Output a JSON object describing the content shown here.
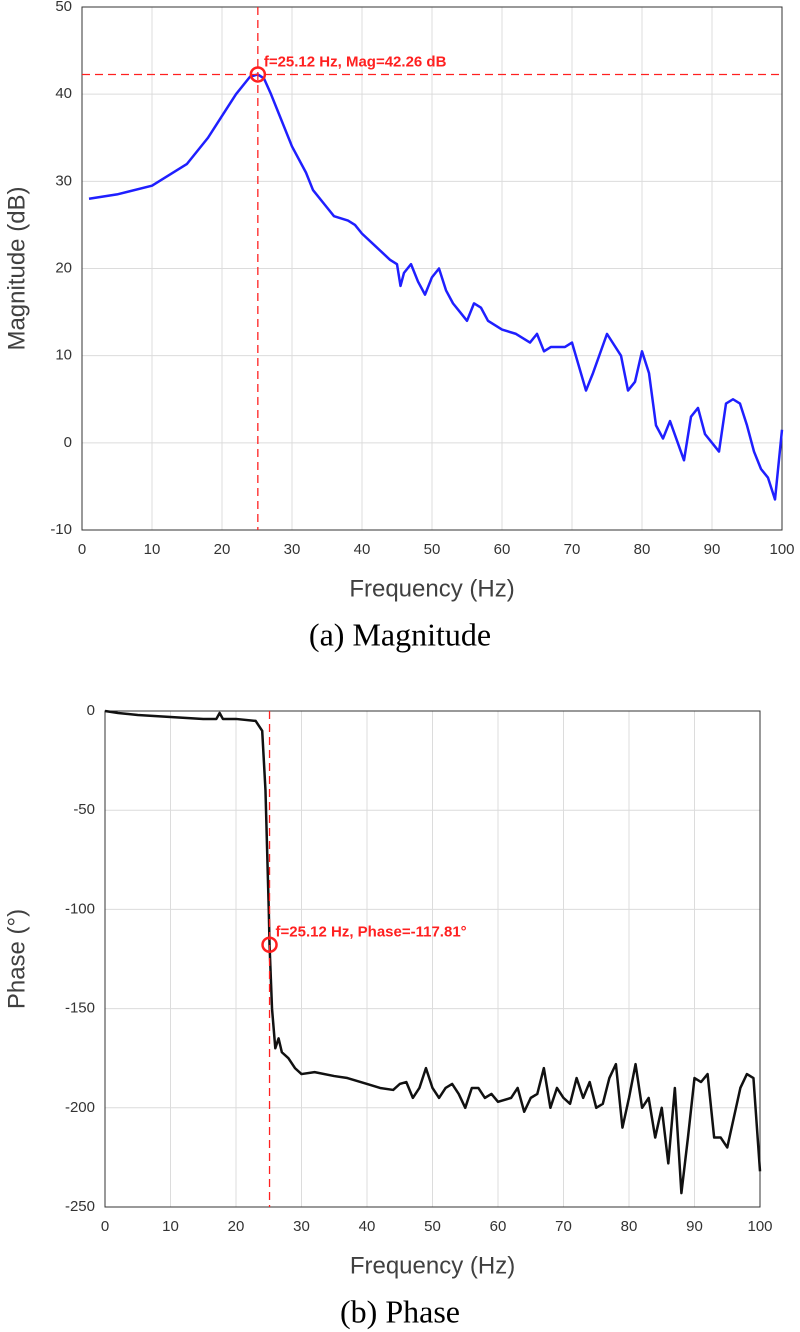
{
  "chart_data": [
    {
      "type": "line",
      "caption": "(a)  Magnitude",
      "x_label": "Frequency (Hz)",
      "y_label": "Magnitude (dB)",
      "x": [
        1,
        5,
        10,
        15,
        18,
        20,
        22,
        24,
        25.12,
        26,
        27,
        28,
        30,
        32,
        33,
        35,
        36,
        38,
        39,
        40,
        42,
        44,
        45,
        45.5,
        46,
        47,
        48,
        49,
        50,
        51,
        52,
        53,
        54,
        55,
        56,
        57,
        58,
        60,
        62,
        64,
        65,
        66,
        67,
        68,
        69,
        70,
        72,
        73,
        75,
        77,
        78,
        79,
        80,
        81,
        82,
        83,
        84,
        86,
        87,
        88,
        89,
        90,
        91,
        92,
        93,
        94,
        95,
        96,
        97,
        98,
        99,
        100
      ],
      "values": [
        28,
        28.5,
        29.5,
        32,
        35,
        37.5,
        40,
        42,
        42.26,
        41.8,
        40,
        38,
        34,
        31,
        29,
        27,
        26,
        25.5,
        25,
        24,
        22.5,
        21,
        20.5,
        18,
        19.5,
        20.5,
        18.5,
        17,
        19,
        20,
        17.5,
        16,
        15,
        14,
        16,
        15.5,
        14,
        13,
        12.5,
        11.5,
        12.5,
        10.5,
        11,
        11,
        11,
        11.5,
        6,
        8,
        12.5,
        10,
        6,
        7,
        10.5,
        8,
        2,
        0.5,
        2.5,
        -2,
        3,
        4,
        1,
        0,
        -1,
        4.5,
        5,
        4.5,
        2,
        -1,
        -3,
        -4,
        -6.5,
        1.5
      ],
      "color": "#1f1fff",
      "xlim": [
        0,
        100
      ],
      "xticks": [
        0,
        10,
        20,
        30,
        40,
        50,
        60,
        70,
        80,
        90,
        100
      ],
      "ylim": [
        -10,
        50
      ],
      "yticks": [
        -10,
        0,
        10,
        20,
        30,
        40,
        50
      ],
      "grid": true,
      "annotation": {
        "text": "f=25.12 Hz, Mag=42.26 dB",
        "x": 25.12,
        "y": 42.26,
        "color": "#ff2020",
        "crosshair": "both"
      }
    },
    {
      "type": "line",
      "caption": "(b)  Phase",
      "x_label": "Frequency (Hz)",
      "y_label": "Phase (°)",
      "x": [
        0,
        2,
        5,
        10,
        15,
        17,
        17.5,
        18,
        20,
        23,
        24,
        24.5,
        25,
        25.12,
        25.5,
        26,
        26.5,
        27,
        28,
        29,
        30,
        32,
        35,
        37,
        40,
        42,
        44,
        45,
        46,
        47,
        48,
        49,
        50,
        51,
        52,
        53,
        54,
        55,
        56,
        57,
        58,
        59,
        60,
        62,
        63,
        64,
        65,
        66,
        67,
        68,
        69,
        70,
        71,
        72,
        73,
        74,
        75,
        76,
        77,
        78,
        79,
        80,
        81,
        82,
        83,
        84,
        85,
        86,
        87,
        88,
        89,
        90,
        91,
        92,
        93,
        94,
        95,
        96,
        97,
        98,
        99,
        100
      ],
      "values": [
        0,
        -1,
        -2,
        -3,
        -4,
        -4,
        -1,
        -4,
        -4,
        -5,
        -10,
        -40,
        -100,
        -117.81,
        -150,
        -170,
        -165,
        -172,
        -175,
        -180,
        -183,
        -182,
        -184,
        -185,
        -188,
        -190,
        -191,
        -188,
        -187,
        -195,
        -190,
        -180,
        -190,
        -195,
        -190,
        -188,
        -193,
        -200,
        -190,
        -190,
        -195,
        -193,
        -197,
        -195,
        -190,
        -202,
        -195,
        -193,
        -180,
        -200,
        -190,
        -195,
        -198,
        -185,
        -195,
        -187,
        -200,
        -198,
        -185,
        -178,
        -210,
        -195,
        -178,
        -200,
        -195,
        -215,
        -200,
        -228,
        -190,
        -243,
        -215,
        -185,
        -187,
        -183,
        -215,
        -215,
        -220,
        -205,
        -190,
        -183,
        -185,
        -232
      ],
      "color": "#111111",
      "xlim": [
        0,
        100
      ],
      "xticks": [
        0,
        10,
        20,
        30,
        40,
        50,
        60,
        70,
        80,
        90,
        100
      ],
      "ylim": [
        -250,
        0
      ],
      "yticks": [
        -250,
        -200,
        -150,
        -100,
        -50,
        0
      ],
      "grid": true,
      "annotation": {
        "text": "f=25.12 Hz, Phase=-117.81°",
        "x": 25.12,
        "y": -117.81,
        "color": "#ff2020",
        "crosshair": "vertical"
      }
    }
  ]
}
